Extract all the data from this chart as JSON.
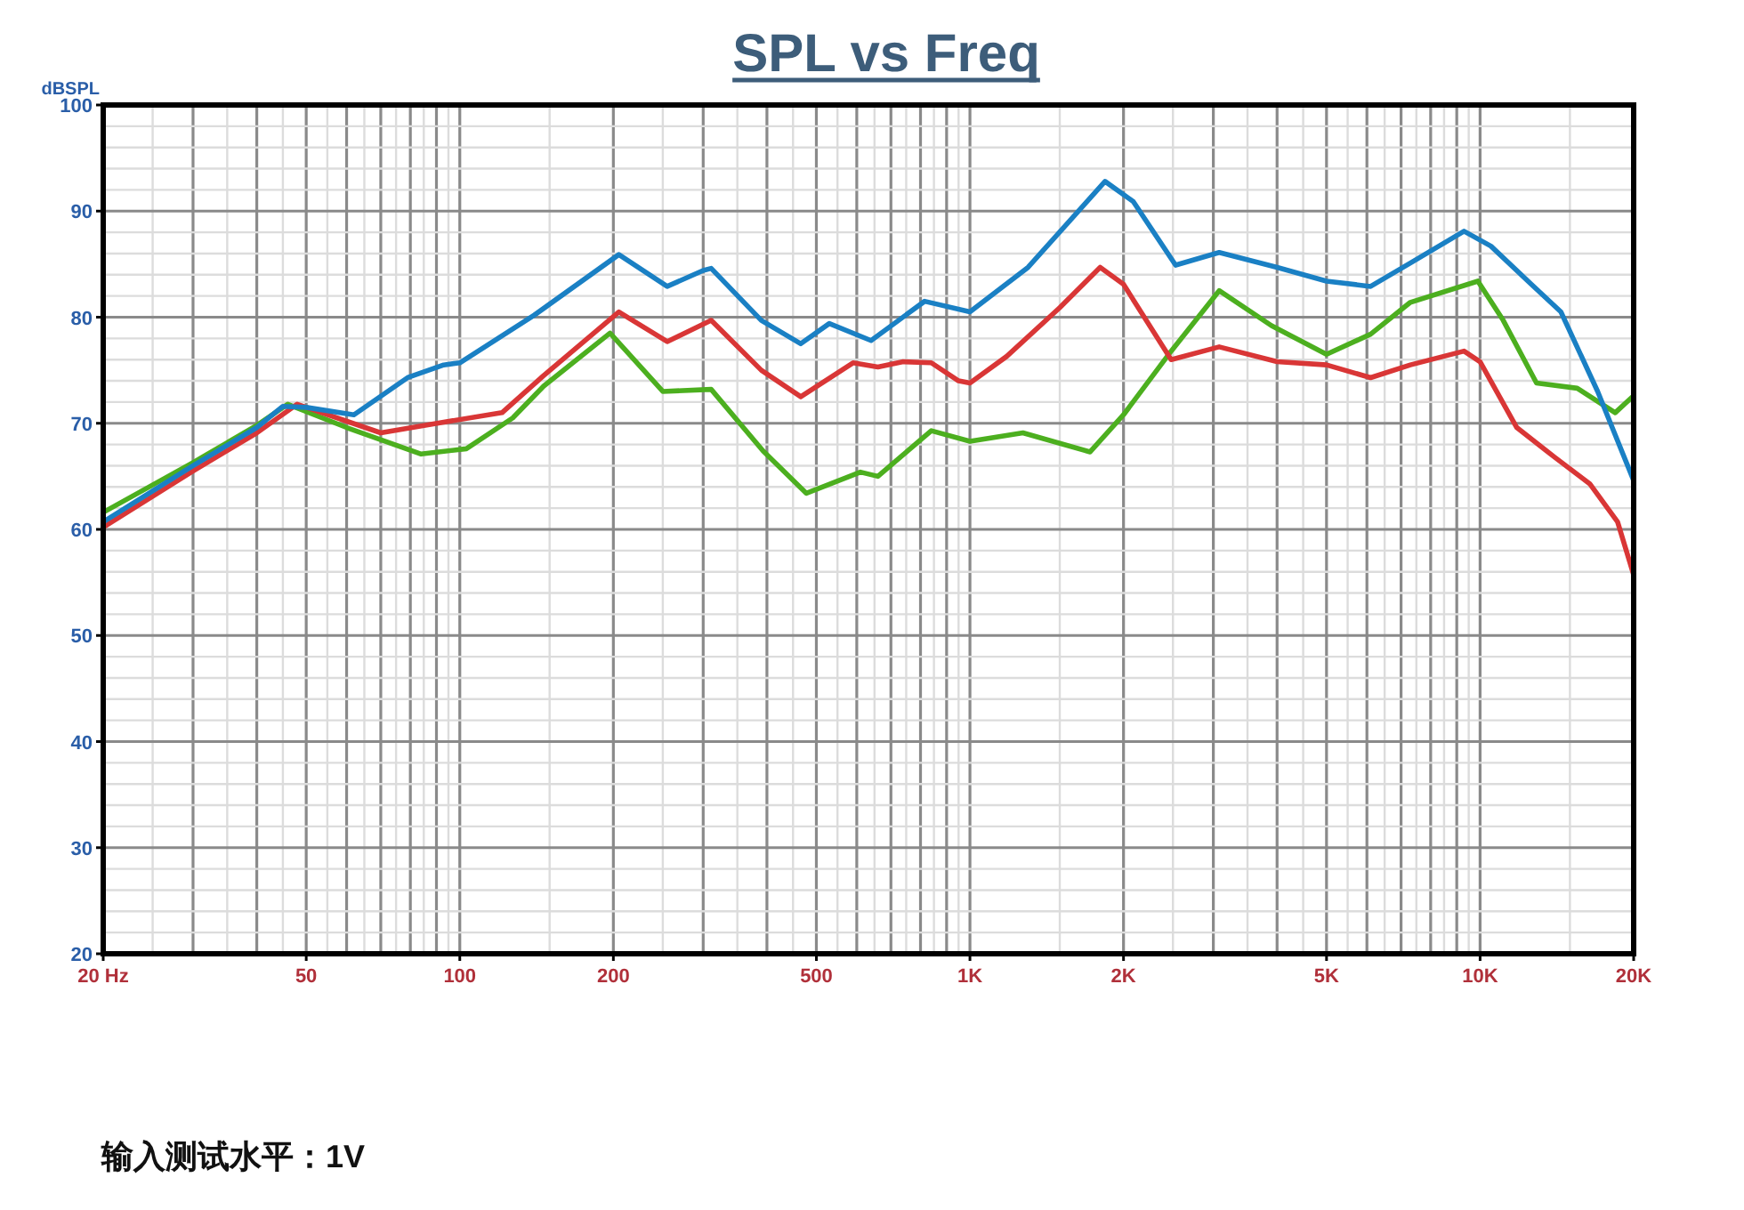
{
  "chart_data": {
    "type": "line",
    "title": "SPL vs Freq",
    "ylabel": "dBSPL",
    "log": "x",
    "grid": true,
    "line_style": "solid",
    "xlim": [
      20,
      20000
    ],
    "ylim": [
      20,
      100
    ],
    "xticks": [
      {
        "value": 20,
        "label": "20 Hz"
      },
      50,
      100,
      200,
      500,
      {
        "value": 1000,
        "label": "1K"
      },
      {
        "value": 2000,
        "label": "2K"
      },
      {
        "value": 5000,
        "label": "5K"
      },
      {
        "value": 10000,
        "label": "10K"
      },
      {
        "value": 20000,
        "label": "20K"
      }
    ],
    "yticks": [
      20,
      30,
      40,
      50,
      60,
      70,
      80,
      90,
      100
    ],
    "annotations": [
      "输入测试水平：1V"
    ],
    "series": [
      {
        "color": "#1a80c4",
        "x": [
          20,
          30,
          40,
          45,
          50,
          62,
          79,
          93,
          100,
          140,
          205,
          255,
          300,
          311,
          390,
          466,
          530,
          640,
          815,
          1000,
          1300,
          1840,
          2090,
          2530,
          3080,
          4000,
          5000,
          6100,
          7300,
          9300,
          10500,
          12600,
          14400,
          17000,
          20000
        ],
        "values": [
          60.7,
          66,
          69.6,
          71.6,
          71.5,
          70.8,
          74.3,
          75.5,
          75.7,
          80.2,
          85.9,
          82.9,
          84.4,
          84.6,
          79.7,
          77.5,
          79.4,
          77.8,
          81.5,
          80.5,
          84.7,
          92.8,
          90.9,
          84.9,
          86.1,
          84.7,
          83.4,
          82.9,
          85.1,
          88.1,
          86.7,
          83.1,
          80.5,
          73,
          64.6
        ]
      },
      {
        "color": "#d93636",
        "x": [
          20,
          30,
          40,
          48,
          70,
          93,
          121,
          146,
          205,
          255,
          311,
          390,
          466,
          590,
          660,
          740,
          840,
          950,
          1000,
          1180,
          1500,
          1800,
          2000,
          2480,
          3080,
          4000,
          5000,
          6100,
          7300,
          9300,
          10000,
          11800,
          14000,
          16400,
          18600,
          20000
        ],
        "values": [
          60.2,
          65.5,
          69.1,
          71.8,
          69.1,
          70.1,
          71,
          74.5,
          80.5,
          77.7,
          79.7,
          75,
          72.5,
          75.7,
          75.3,
          75.8,
          75.7,
          74,
          73.8,
          76.3,
          80.9,
          84.7,
          83.1,
          76,
          77.2,
          75.8,
          75.5,
          74.3,
          75.5,
          76.8,
          75.8,
          69.6,
          66.8,
          64.3,
          60.7,
          55.7
        ]
      },
      {
        "color": "#4caf1f",
        "x": [
          20,
          30,
          40,
          46,
          60,
          84,
          103,
          127,
          146,
          197,
          250,
          311,
          393,
          478,
          610,
          660,
          840,
          1000,
          1270,
          1720,
          2000,
          2480,
          3080,
          3900,
          5000,
          6100,
          7300,
          9900,
          11100,
          12900,
          15500,
          18400,
          20000
        ],
        "values": [
          61.6,
          66.3,
          69.8,
          71.8,
          69.6,
          67.1,
          67.6,
          70.5,
          73.5,
          78.5,
          73,
          73.2,
          67.4,
          63.4,
          65.4,
          65,
          69.3,
          68.3,
          69.1,
          67.3,
          70.8,
          76.8,
          82.5,
          79.2,
          76.5,
          78.4,
          81.4,
          83.4,
          79.7,
          73.8,
          73.3,
          71,
          72.6
        ]
      }
    ]
  }
}
